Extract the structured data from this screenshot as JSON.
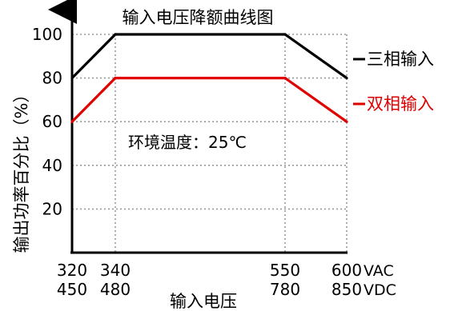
{
  "chart_data": {
    "type": "line",
    "title": "输入电压降额曲线图",
    "xlabel": "输入电压",
    "ylabel": "输出功率百分比（%）",
    "ylim": [
      0,
      110
    ],
    "y_ticks": [
      20,
      40,
      60,
      80,
      100
    ],
    "x_ticks": [
      {
        "value": 320,
        "line1": "320",
        "line2": "450"
      },
      {
        "value": 340,
        "line1": "340",
        "line2": "480"
      },
      {
        "value": 550,
        "line1": "550",
        "line2": "780"
      },
      {
        "value": 600,
        "line1": "600",
        "line2": "850"
      }
    ],
    "x_units": {
      "line1": "VAC",
      "line2": "VDC"
    },
    "xlim": [
      320,
      600
    ],
    "grid": "dotted",
    "annotation": "环境温度：25℃",
    "series": [
      {
        "name": "三相输入",
        "color": "#000000",
        "x": [
          320,
          340,
          550,
          600
        ],
        "y": [
          80,
          100,
          100,
          80
        ]
      },
      {
        "name": "双相输入",
        "color": "#e00000",
        "x": [
          320,
          340,
          550,
          600
        ],
        "y": [
          60,
          80,
          80,
          60
        ]
      }
    ]
  }
}
